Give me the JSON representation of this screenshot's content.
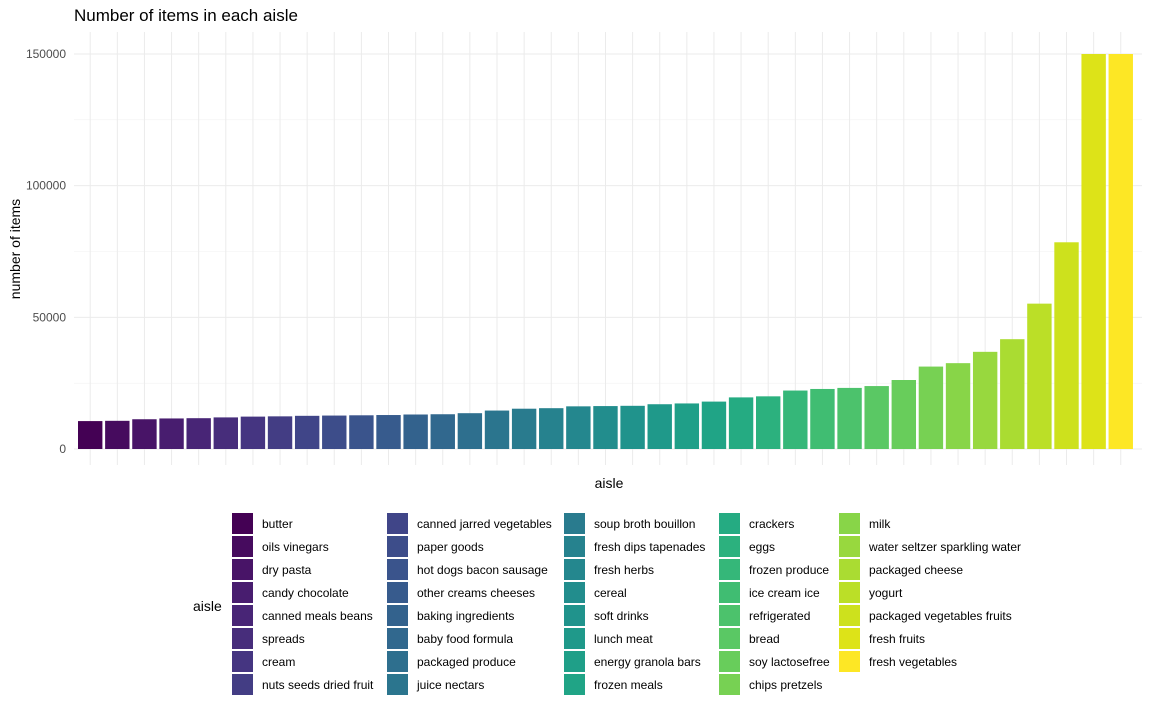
{
  "chart_data": {
    "type": "bar",
    "title": "Number of items in each aisle",
    "xlabel": "aisle",
    "ylabel": "number of items",
    "ylim": [
      0,
      150000
    ],
    "yticks": [
      0,
      50000,
      100000,
      150000
    ],
    "ytick_labels": [
      "0",
      "50000",
      "100000",
      "150000"
    ],
    "grid": true,
    "x_tick_labels_shown": false,
    "legend_title": "aisle",
    "legend_position": "bottom",
    "categories": [
      "butter",
      "oils vinegars",
      "dry pasta",
      "candy chocolate",
      "canned meals beans",
      "spreads",
      "cream",
      "nuts seeds dried fruit",
      "canned jarred vegetables",
      "paper goods",
      "hot dogs bacon sausage",
      "other creams cheeses",
      "baking ingredients",
      "baby food formula",
      "packaged produce",
      "juice nectars",
      "soup broth bouillon",
      "fresh dips tapenades",
      "fresh herbs",
      "cereal",
      "soft drinks",
      "lunch meat",
      "energy granola bars",
      "frozen meals",
      "crackers",
      "eggs",
      "frozen produce",
      "ice cream ice",
      "refrigerated",
      "bread",
      "soy lactosefree",
      "chips pretzels",
      "milk",
      "water seltzer sparkling water",
      "packaged cheese",
      "yogurt",
      "packaged vegetables fruits",
      "fresh fruits",
      "fresh vegetables"
    ],
    "values": [
      10600,
      10700,
      11300,
      11600,
      11700,
      12000,
      12300,
      12400,
      12600,
      12700,
      12800,
      12900,
      13100,
      13200,
      13600,
      14600,
      15300,
      15500,
      16200,
      16300,
      16400,
      17000,
      17300,
      18000,
      19600,
      20000,
      22200,
      22800,
      23200,
      23900,
      26200,
      31300,
      32600,
      36900,
      41700,
      55200,
      78500,
      150000,
      150000
    ],
    "colors": [
      "#440154",
      "#460B5E",
      "#481467",
      "#481D6F",
      "#482576",
      "#472D7B",
      "#453581",
      "#433D84",
      "#404588",
      "#3D4D8A",
      "#3A548C",
      "#375B8D",
      "#33628D",
      "#31688E",
      "#2E6F8E",
      "#2B758E",
      "#297B8E",
      "#26828E",
      "#24878E",
      "#228D8D",
      "#20938C",
      "#1F998A",
      "#1F9F88",
      "#20A486",
      "#25AB82",
      "#2CB17E",
      "#35B779",
      "#40BD72",
      "#4CC26C",
      "#5AC864",
      "#68CD5B",
      "#77D153",
      "#88D548",
      "#98D83E",
      "#AADC32",
      "#BBDF27",
      "#CDE11D",
      "#DDE318",
      "#FDE725"
    ]
  }
}
